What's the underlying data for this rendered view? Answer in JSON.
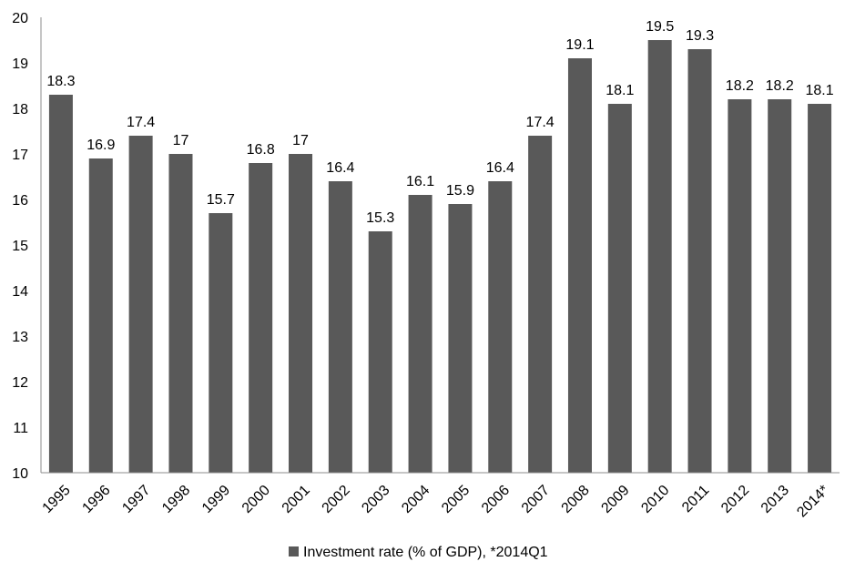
{
  "chart_data": {
    "type": "bar",
    "categories": [
      "1995",
      "1996",
      "1997",
      "1998",
      "1999",
      "2000",
      "2001",
      "2002",
      "2003",
      "2004",
      "2005",
      "2006",
      "2007",
      "2008",
      "2009",
      "2010",
      "2011",
      "2012",
      "2013",
      "2014*"
    ],
    "series": [
      {
        "name": "Investment rate (% of GDP), *2014Q1",
        "values": [
          18.3,
          16.9,
          17.4,
          17,
          15.7,
          16.8,
          17,
          16.4,
          15.3,
          16.1,
          15.9,
          16.4,
          17.4,
          19.1,
          18.1,
          19.5,
          19.3,
          18.2,
          18.2,
          18.1
        ],
        "color": "#595959"
      }
    ],
    "data_labels": [
      "18.3",
      "16.9",
      "17.4",
      "17",
      "15.7",
      "16.8",
      "17",
      "16.4",
      "15.3",
      "16.1",
      "15.9",
      "16.4",
      "17.4",
      "19.1",
      "18.1",
      "19.5",
      "19.3",
      "18.2",
      "18.2",
      "18.1"
    ],
    "yticks": [
      "10",
      "11",
      "12",
      "13",
      "14",
      "15",
      "16",
      "17",
      "18",
      "19",
      "20"
    ],
    "ylim": [
      10,
      20
    ],
    "title": "",
    "xlabel": "",
    "ylabel": "",
    "grid": false,
    "legend_position": "bottom",
    "axis_color": "#8c8c8c"
  }
}
